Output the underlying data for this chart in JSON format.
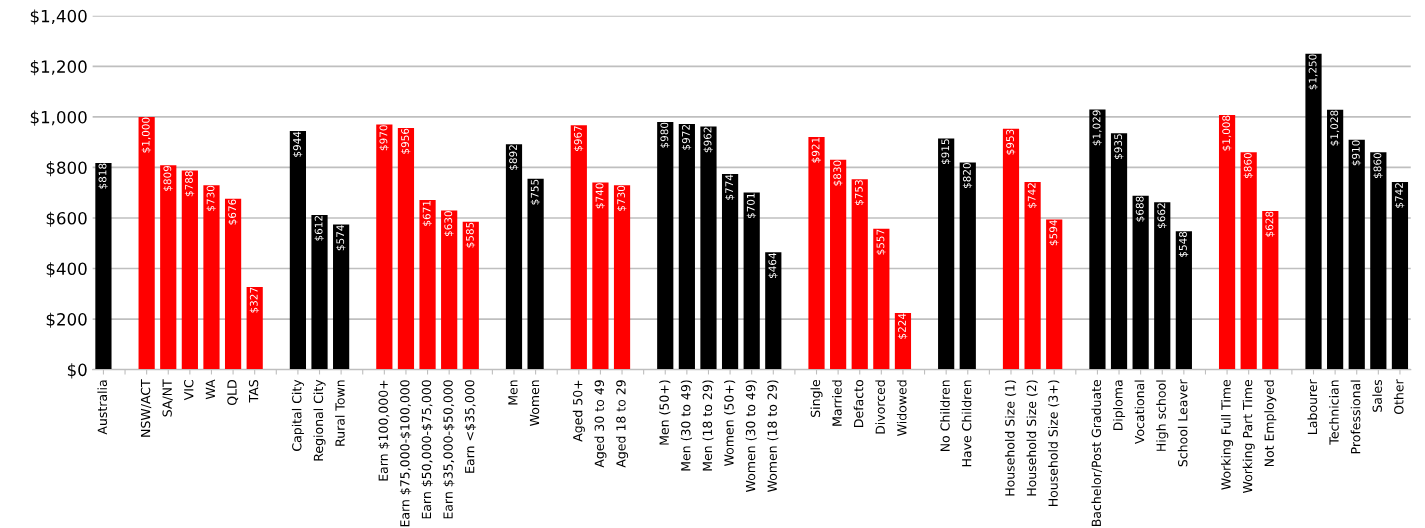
{
  "chart_data": {
    "type": "bar",
    "categories": [
      "Australia",
      null,
      "NSW/ACT",
      "SA/NT",
      "VIC",
      "WA",
      "QLD",
      "TAS",
      null,
      "Capital City",
      "Regional City",
      "Rural Town",
      null,
      "Earn $100,000+",
      "Earn $75,000-$100,000",
      "Earn $50,000-$75,000",
      "Earn $35,000-$50,000",
      "Earn <$35,000",
      null,
      "Men",
      "Women",
      null,
      "Aged 50+",
      "Aged 30 to 49",
      "Aged 18 to 29",
      null,
      "Men (50+)",
      "Men (30 to 49)",
      "Men (18 to 29)",
      "Women (50+)",
      "Women (30 to 49)",
      "Women (18 to 29)",
      null,
      "Single",
      "Married",
      "Defacto",
      "Divorced",
      "Widowed",
      null,
      "No Children",
      "Have Children",
      null,
      "Household Size (1)",
      "Household Size (2)",
      "Household Size (3+)",
      null,
      "Bachelor/Post Graduate",
      "Diploma",
      "Vocational",
      "High school",
      "School Leaver",
      null,
      "Working Full Time",
      "Working Part Time",
      "Not Employed",
      null,
      "Labourer",
      "Technician",
      "Professional",
      "Sales",
      "Other"
    ],
    "values": [
      818,
      null,
      1000,
      809,
      788,
      730,
      676,
      327,
      null,
      944,
      612,
      574,
      null,
      970,
      956,
      671,
      630,
      585,
      null,
      892,
      755,
      null,
      967,
      740,
      730,
      null,
      980,
      972,
      962,
      774,
      701,
      464,
      null,
      921,
      830,
      753,
      557,
      224,
      null,
      915,
      820,
      null,
      953,
      742,
      594,
      null,
      1029,
      935,
      688,
      662,
      548,
      null,
      1008,
      860,
      628,
      null,
      1250,
      1028,
      910,
      860,
      742
    ],
    "colors": [
      "#000000",
      null,
      "#ff0000",
      "#ff0000",
      "#ff0000",
      "#ff0000",
      "#ff0000",
      "#ff0000",
      null,
      "#000000",
      "#000000",
      "#000000",
      null,
      "#ff0000",
      "#ff0000",
      "#ff0000",
      "#ff0000",
      "#ff0000",
      null,
      "#000000",
      "#000000",
      null,
      "#ff0000",
      "#ff0000",
      "#ff0000",
      null,
      "#000000",
      "#000000",
      "#000000",
      "#000000",
      "#000000",
      "#000000",
      null,
      "#ff0000",
      "#ff0000",
      "#ff0000",
      "#ff0000",
      "#ff0000",
      null,
      "#000000",
      "#000000",
      null,
      "#ff0000",
      "#ff0000",
      "#ff0000",
      null,
      "#000000",
      "#000000",
      "#000000",
      "#000000",
      "#000000",
      null,
      "#ff0000",
      "#ff0000",
      "#ff0000",
      null,
      "#000000",
      "#000000",
      "#000000",
      "#000000",
      "#000000"
    ],
    "ylim": [
      0,
      1400
    ],
    "yticks": [
      {
        "value": 0,
        "label": "$0"
      },
      {
        "value": 200,
        "label": "$200"
      },
      {
        "value": 400,
        "label": "$400"
      },
      {
        "value": 600,
        "label": "$600"
      },
      {
        "value": 800,
        "label": "$800"
      },
      {
        "value": 1000,
        "label": "$1,000"
      },
      {
        "value": 1200,
        "label": "$1,200"
      },
      {
        "value": 1400,
        "label": "$1,400"
      }
    ],
    "grid": "y",
    "value_labels": [
      "$818",
      null,
      "$1,000",
      "$809",
      "$788",
      "$730",
      "$676",
      "$327",
      null,
      "$944",
      "$612",
      "$574",
      null,
      "$970",
      "$956",
      "$671",
      "$630",
      "$585",
      null,
      "$892",
      "$755",
      null,
      "$967",
      "$740",
      "$730",
      null,
      "$980",
      "$972",
      "$962",
      "$774",
      "$701",
      "$464",
      null,
      "$921",
      "$830",
      "$753",
      "$557",
      "$224",
      null,
      "$915",
      "$820",
      null,
      "$953",
      "$742",
      "$594",
      null,
      "$1,029",
      "$935",
      "$688",
      "$662",
      "$548",
      null,
      "$1,008",
      "$860",
      "$628",
      null,
      "$1,250",
      "$1,028",
      "$910",
      "$860",
      "$742"
    ]
  }
}
